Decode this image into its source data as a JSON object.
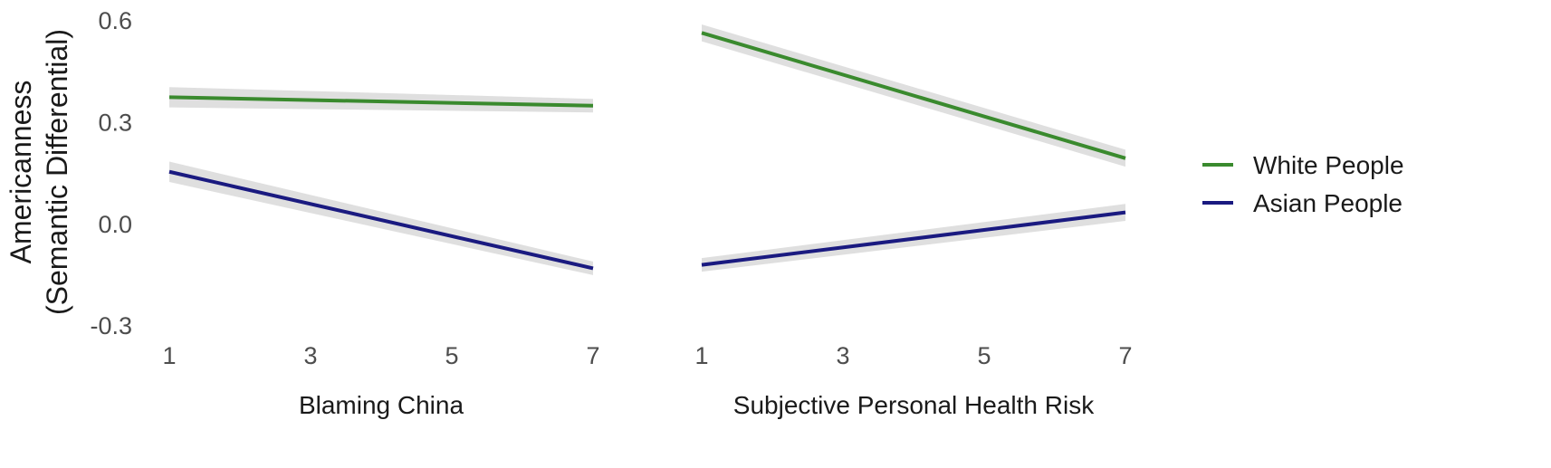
{
  "chart_data": {
    "type": "line",
    "y_axis": {
      "title_lines": [
        "Americanness",
        "(Semantic Differential)"
      ],
      "ticks": [
        0.6,
        0.3,
        0.0,
        -0.3
      ],
      "tick_labels": [
        "0.6",
        "0.3",
        "0.0",
        "-0.3"
      ],
      "ylim": [
        -0.34,
        0.63
      ]
    },
    "legend": {
      "placement": "right",
      "entries": [
        {
          "label": "White People",
          "color": "#3a8a2e"
        },
        {
          "label": "Asian People",
          "color": "#1a1a80"
        }
      ]
    },
    "panels": [
      {
        "xlabel": "Blaming China",
        "x_ticks": [
          1,
          3,
          5,
          7
        ],
        "x_tick_labels": [
          "1",
          "3",
          "5",
          "7"
        ],
        "xlim": [
          1,
          7
        ],
        "series": [
          {
            "name": "White People",
            "color": "#3a8a2e",
            "x": [
              1,
              7
            ],
            "y": [
              0.375,
              0.35
            ],
            "ci": [
              0.03,
              0.02
            ]
          },
          {
            "name": "Asian People",
            "color": "#1a1a80",
            "x": [
              1,
              7
            ],
            "y": [
              0.155,
              -0.13
            ],
            "ci": [
              0.03,
              0.02
            ]
          }
        ]
      },
      {
        "xlabel": "Subjective Personal Health Risk",
        "x_ticks": [
          1,
          3,
          5,
          7
        ],
        "x_tick_labels": [
          "1",
          "3",
          "5",
          "7"
        ],
        "xlim": [
          1,
          7
        ],
        "series": [
          {
            "name": "White People",
            "color": "#3a8a2e",
            "x": [
              1,
              7
            ],
            "y": [
              0.565,
              0.195
            ],
            "ci": [
              0.025,
              0.025
            ]
          },
          {
            "name": "Asian People",
            "color": "#1a1a80",
            "x": [
              1,
              7
            ],
            "y": [
              -0.12,
              0.035
            ],
            "ci": [
              0.02,
              0.025
            ]
          }
        ]
      }
    ],
    "grid": false
  }
}
